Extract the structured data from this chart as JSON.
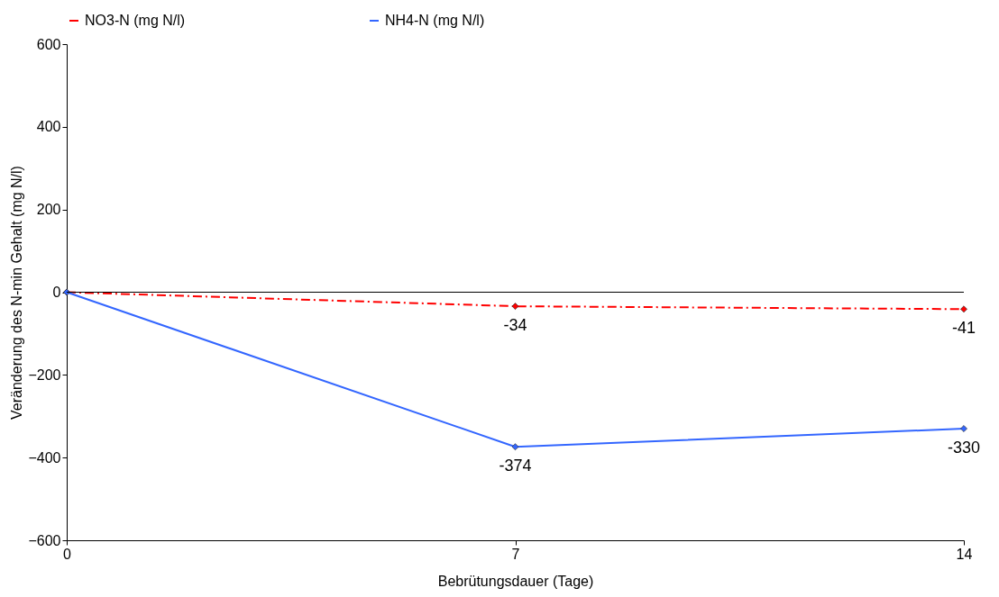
{
  "chart_data": {
    "type": "line",
    "xlabel": "Bebrütungsdauer (Tage)",
    "ylabel": "Veränderung des N-min Gehalt (mg N/l)",
    "x": [
      0,
      7,
      14
    ],
    "xlim": [
      0,
      14
    ],
    "xticks": [
      0,
      7,
      14
    ],
    "ylim": [
      -600,
      600
    ],
    "yticks": [
      -600,
      -400,
      -200,
      0,
      200,
      400,
      600
    ],
    "series": [
      {
        "name": "NO3-N (mg N/l)",
        "color": "#ff0000",
        "values": [
          0,
          -34,
          -41
        ],
        "value_labels": [
          null,
          "-34",
          "-41"
        ],
        "line_style": "dashed"
      },
      {
        "name": "NH4-N (mg N/l)",
        "color": "#3366ff",
        "values": [
          0,
          -374,
          -330
        ],
        "value_labels": [
          null,
          "-374",
          "-330"
        ],
        "line_style": "solid"
      }
    ],
    "ref_lines": [
      {
        "axis": "y",
        "value": 0,
        "color": "#000000"
      }
    ],
    "marker": "diamond",
    "legend": "top",
    "grid": false
  }
}
